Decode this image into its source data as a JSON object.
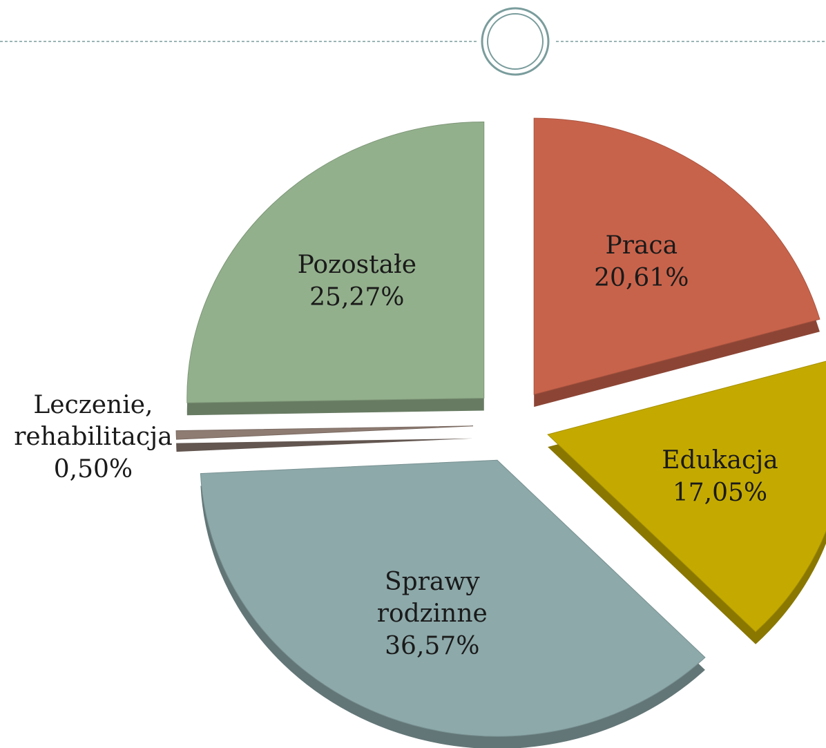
{
  "chart_data": {
    "type": "pie",
    "categories": [
      "Praca",
      "Edukacja",
      "Sprawy rodzinne",
      "Leczenie, rehabilitacja",
      "Pozostałe"
    ],
    "values": [
      20.61,
      17.05,
      36.57,
      0.5,
      25.27
    ],
    "value_labels": [
      "20,61%",
      "17,05%",
      "36,57%",
      "0,50%",
      "25,27%"
    ],
    "colors": [
      "#c8634b",
      "#c4aa00",
      "#8da9aa",
      "#8e7b72",
      "#93b08c"
    ]
  }
}
